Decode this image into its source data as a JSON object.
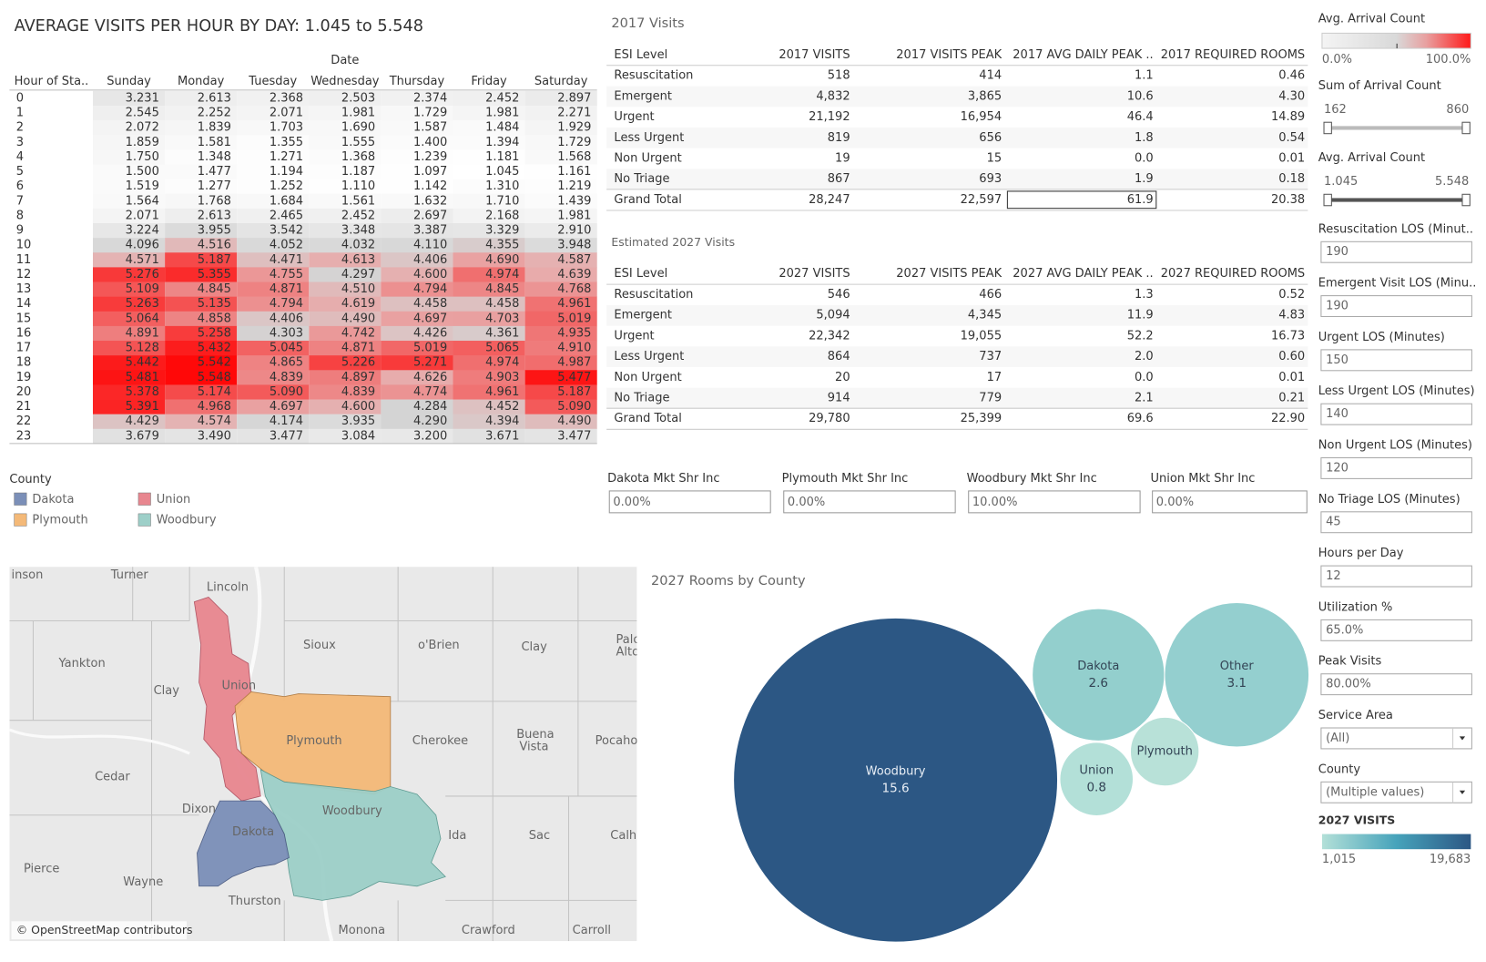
{
  "title": "AVERAGE VISITS PER HOUR BY DAY: 1.045 to 5.548",
  "heatmap": {
    "column_header": "Date",
    "row_header": "Hour of Sta..",
    "columns": [
      "Sunday",
      "Monday",
      "Tuesday",
      "Wednesday",
      "Thursday",
      "Friday",
      "Saturday"
    ],
    "rows": [
      {
        "hour": "0",
        "values": [
          "3.231",
          "2.613",
          "2.368",
          "2.503",
          "2.374",
          "2.452",
          "2.897"
        ]
      },
      {
        "hour": "1",
        "values": [
          "2.545",
          "2.252",
          "2.071",
          "1.981",
          "1.729",
          "1.981",
          "2.271"
        ]
      },
      {
        "hour": "2",
        "values": [
          "2.072",
          "1.839",
          "1.703",
          "1.690",
          "1.587",
          "1.484",
          "1.929"
        ]
      },
      {
        "hour": "3",
        "values": [
          "1.859",
          "1.581",
          "1.355",
          "1.555",
          "1.400",
          "1.394",
          "1.729"
        ]
      },
      {
        "hour": "4",
        "values": [
          "1.750",
          "1.348",
          "1.271",
          "1.368",
          "1.239",
          "1.181",
          "1.568"
        ]
      },
      {
        "hour": "5",
        "values": [
          "1.500",
          "1.477",
          "1.194",
          "1.187",
          "1.097",
          "1.045",
          "1.161"
        ]
      },
      {
        "hour": "6",
        "values": [
          "1.519",
          "1.277",
          "1.252",
          "1.110",
          "1.142",
          "1.310",
          "1.219"
        ]
      },
      {
        "hour": "7",
        "values": [
          "1.564",
          "1.768",
          "1.684",
          "1.561",
          "1.632",
          "1.710",
          "1.439"
        ]
      },
      {
        "hour": "8",
        "values": [
          "2.071",
          "2.613",
          "2.465",
          "2.452",
          "2.697",
          "2.168",
          "1.981"
        ]
      },
      {
        "hour": "9",
        "values": [
          "3.224",
          "3.955",
          "3.542",
          "3.348",
          "3.387",
          "3.329",
          "2.910"
        ]
      },
      {
        "hour": "10",
        "values": [
          "4.096",
          "4.516",
          "4.052",
          "4.032",
          "4.110",
          "4.355",
          "3.948"
        ]
      },
      {
        "hour": "11",
        "values": [
          "4.571",
          "5.187",
          "4.471",
          "4.613",
          "4.406",
          "4.690",
          "4.587"
        ]
      },
      {
        "hour": "12",
        "values": [
          "5.276",
          "5.355",
          "4.755",
          "4.297",
          "4.600",
          "4.974",
          "4.639"
        ]
      },
      {
        "hour": "13",
        "values": [
          "5.109",
          "4.845",
          "4.871",
          "4.510",
          "4.794",
          "4.845",
          "4.768"
        ]
      },
      {
        "hour": "14",
        "values": [
          "5.263",
          "5.135",
          "4.794",
          "4.619",
          "4.458",
          "4.458",
          "4.961"
        ]
      },
      {
        "hour": "15",
        "values": [
          "5.064",
          "4.858",
          "4.406",
          "4.490",
          "4.697",
          "4.703",
          "5.019"
        ]
      },
      {
        "hour": "16",
        "values": [
          "4.891",
          "5.258",
          "4.303",
          "4.742",
          "4.426",
          "4.361",
          "4.935"
        ]
      },
      {
        "hour": "17",
        "values": [
          "5.128",
          "5.432",
          "5.045",
          "4.871",
          "5.019",
          "5.065",
          "4.910"
        ]
      },
      {
        "hour": "18",
        "values": [
          "5.442",
          "5.542",
          "4.865",
          "5.226",
          "5.271",
          "4.974",
          "4.987"
        ]
      },
      {
        "hour": "19",
        "values": [
          "5.481",
          "5.548",
          "4.839",
          "4.897",
          "4.626",
          "4.903",
          "5.477"
        ]
      },
      {
        "hour": "20",
        "values": [
          "5.378",
          "5.174",
          "5.090",
          "4.839",
          "4.774",
          "4.961",
          "5.187"
        ]
      },
      {
        "hour": "21",
        "values": [
          "5.391",
          "4.968",
          "4.697",
          "4.600",
          "4.284",
          "4.452",
          "5.090"
        ]
      },
      {
        "hour": "22",
        "values": [
          "4.429",
          "4.574",
          "4.174",
          "3.935",
          "4.290",
          "4.394",
          "4.490"
        ]
      },
      {
        "hour": "23",
        "values": [
          "3.679",
          "3.490",
          "3.477",
          "3.084",
          "3.200",
          "3.671",
          "3.477"
        ]
      }
    ]
  },
  "county_legend": {
    "title": "County",
    "items": [
      {
        "name": "Dakota",
        "color": "#7b8fb8"
      },
      {
        "name": "Union",
        "color": "#e8868f"
      },
      {
        "name": "Plymouth",
        "color": "#f4b978"
      },
      {
        "name": "Woodbury",
        "color": "#9dcfc8"
      }
    ]
  },
  "tables": [
    {
      "title": "2017 Visits",
      "headers": [
        "ESI Level",
        "2017 VISITS",
        "2017 VISITS PEAK",
        "2017 AVG DAILY PEAK ..",
        "2017 REQUIRED ROOMS"
      ],
      "rows": [
        [
          "Resuscitation",
          "518",
          "414",
          "1.1",
          "0.46"
        ],
        [
          "Emergent",
          "4,832",
          "3,865",
          "10.6",
          "4.30"
        ],
        [
          "Urgent",
          "21,192",
          "16,954",
          "46.4",
          "14.89"
        ],
        [
          "Less Urgent",
          "819",
          "656",
          "1.8",
          "0.54"
        ],
        [
          "Non Urgent",
          "19",
          "15",
          "0.0",
          "0.01"
        ],
        [
          "No Triage",
          "867",
          "693",
          "1.9",
          "0.18"
        ],
        [
          "Grand Total",
          "28,247",
          "22,597",
          "61.9",
          "20.38"
        ]
      ]
    },
    {
      "title": "Estimated 2027 Visits",
      "headers": [
        "ESI Level",
        "2027 VISITS",
        "2027 VISITS PEAK",
        "2027 AVG DAILY PEAK ..",
        "2027 REQUIRED ROOMS"
      ],
      "rows": [
        [
          "Resuscitation",
          "546",
          "466",
          "1.3",
          "0.52"
        ],
        [
          "Emergent",
          "5,094",
          "4,345",
          "11.9",
          "4.83"
        ],
        [
          "Urgent",
          "22,342",
          "19,055",
          "52.2",
          "16.73"
        ],
        [
          "Less Urgent",
          "864",
          "737",
          "2.0",
          "0.60"
        ],
        [
          "Non Urgent",
          "20",
          "17",
          "0.0",
          "0.01"
        ],
        [
          "No Triage",
          "914",
          "779",
          "2.1",
          "0.21"
        ],
        [
          "Grand Total",
          "29,780",
          "25,399",
          "69.6",
          "22.90"
        ]
      ]
    }
  ],
  "market_share": [
    {
      "label": "Dakota Mkt Shr Inc",
      "value": "0.00%"
    },
    {
      "label": "Plymouth Mkt Shr Inc",
      "value": "0.00%"
    },
    {
      "label": "Woodbury Mkt Shr Inc",
      "value": "10.00%"
    },
    {
      "label": "Union Mkt Shr Inc",
      "value": "0.00%"
    }
  ],
  "map": {
    "attribution": "© OpenStreetMap contributors",
    "places": [
      "inson",
      "Turner",
      "Lincoln",
      "Yankton",
      "Clay",
      "Union",
      "Sioux",
      "o'Brien",
      "Clay",
      "Palo",
      "Alto",
      "Cherokee",
      "Buena",
      "Vista",
      "Pocaho",
      "Cedar",
      "Dixon",
      "Plymouth",
      "Ida",
      "Sac",
      "Calho",
      "Pierce",
      "Wayne",
      "Thurston",
      "Dakota",
      "Woodbury",
      "Monona",
      "Crawford",
      "Carroll"
    ]
  },
  "bubbles": {
    "title": "2027 Rooms by County",
    "items": [
      {
        "name": "Woodbury",
        "value": 15.6,
        "color": "#2c5784"
      },
      {
        "name": "Dakota",
        "value": 2.6,
        "color": "#93cfcd"
      },
      {
        "name": "Other",
        "value": 3.1,
        "color": "#94cfcf"
      },
      {
        "name": "Plymouth",
        "value": 0.7,
        "color": "#b8e1d8",
        "show_value": false
      },
      {
        "name": "Union",
        "value": 0.8,
        "color": "#b3e0d8"
      }
    ]
  },
  "color_legend": {
    "title": "Avg. Arrival Count",
    "min": "0.0%",
    "max": "100.0%"
  },
  "sliders": [
    {
      "title": "Sum of Arrival Count",
      "min": "162",
      "max": "860"
    },
    {
      "title": "Avg. Arrival Count",
      "min": "1.045",
      "max": "5.548"
    }
  ],
  "parameters": [
    {
      "label": "Resuscitation LOS (Minut..",
      "value": "190"
    },
    {
      "label": "Emergent Visit LOS (Minu..",
      "value": "190"
    },
    {
      "label": "Urgent LOS (Minutes)",
      "value": "150"
    },
    {
      "label": "Less Urgent LOS (Minutes)",
      "value": "140"
    },
    {
      "label": "Non Urgent LOS (Minutes)",
      "value": "120"
    },
    {
      "label": "No Triage LOS (Minutes)",
      "value": "45"
    },
    {
      "label": "Hours per Day",
      "value": "12"
    },
    {
      "label": "Utilization %",
      "value": "65.0%"
    },
    {
      "label": "Peak Visits",
      "value": "80.00%"
    },
    {
      "label": "Service Area",
      "value": "(All)",
      "dropdown": true
    },
    {
      "label": "County",
      "value": "(Multiple values)",
      "dropdown": true
    }
  ],
  "visits_legend": {
    "title": "2027 VISITS",
    "min": "1,015",
    "max": "19,683"
  }
}
